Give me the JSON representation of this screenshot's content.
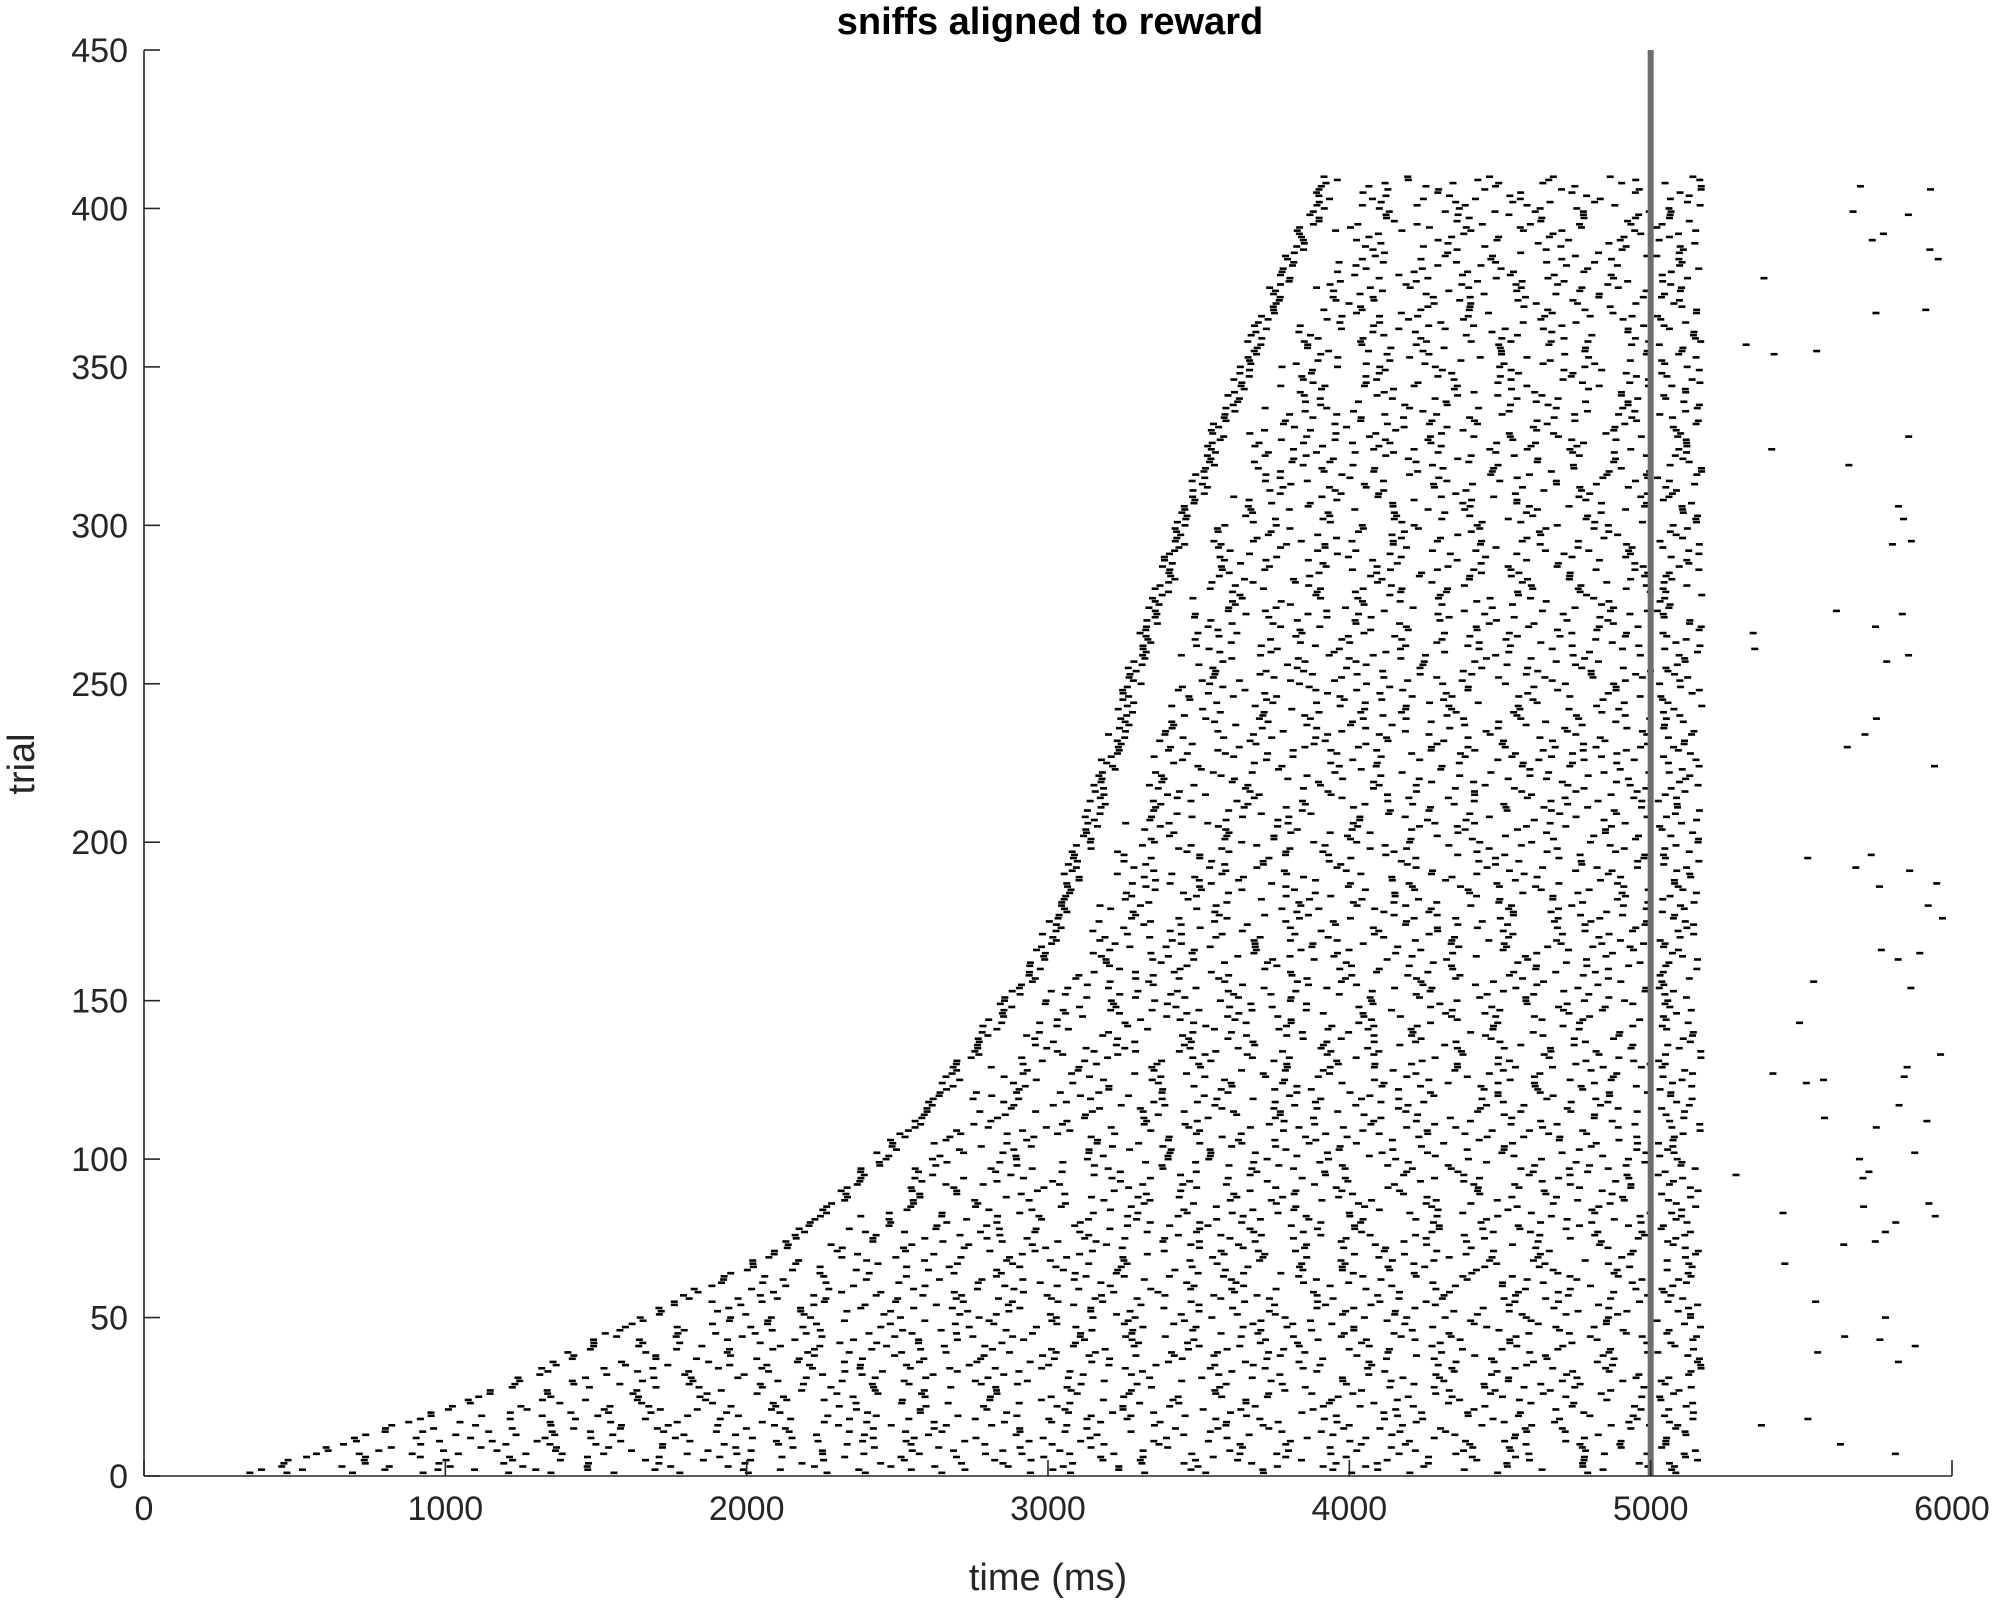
{
  "chart_data": {
    "type": "scatter",
    "subtype": "raster",
    "title": "sniffs aligned to reward",
    "xlabel": "time (ms)",
    "ylabel": "trial",
    "xlim": [
      0,
      6000
    ],
    "ylim": [
      0,
      450
    ],
    "xticks": [
      0,
      1000,
      2000,
      3000,
      4000,
      5000,
      6000
    ],
    "yticks": [
      0,
      50,
      100,
      150,
      200,
      250,
      300,
      350,
      400,
      450
    ],
    "xtick_labels": [
      "0",
      "1000",
      "2000",
      "3000",
      "4000",
      "5000",
      "6000"
    ],
    "ytick_labels": [
      "0",
      "50",
      "100",
      "150",
      "200",
      "250",
      "300",
      "350",
      "400",
      "450"
    ],
    "grid": false,
    "box": false,
    "reward_line": {
      "x": 5000,
      "color": "#6e6e6e"
    },
    "marker_color": "#000000",
    "n_trials": 410,
    "trial_blocks": [
      {
        "trials": [
          1,
          30
        ],
        "first_sniff_ms": [
          380,
          1270
        ]
      },
      {
        "trials": [
          31,
          75
        ],
        "first_sniff_ms": [
          1270,
          2180
        ]
      },
      {
        "trials": [
          76,
          120
        ],
        "first_sniff_ms": [
          2180,
          2650
        ]
      },
      {
        "trials": [
          121,
          165
        ],
        "first_sniff_ms": [
          2650,
          2990
        ]
      },
      {
        "trials": [
          166,
          210
        ],
        "first_sniff_ms": [
          2990,
          3160
        ]
      },
      {
        "trials": [
          211,
          250
        ],
        "first_sniff_ms": [
          3160,
          3280
        ]
      },
      {
        "trials": [
          251,
          285
        ],
        "first_sniff_ms": [
          3280,
          3400
        ]
      },
      {
        "trials": [
          286,
          325
        ],
        "first_sniff_ms": [
          3400,
          3550
        ]
      },
      {
        "trials": [
          326,
          365
        ],
        "first_sniff_ms": [
          3550,
          3720
        ]
      },
      {
        "trials": [
          366,
          410
        ],
        "first_sniff_ms": [
          3720,
          3940
        ]
      }
    ],
    "sniff_interval_ms": [
      120,
      300
    ],
    "post_reward_sniff_interval_ms": [
      250,
      1400
    ],
    "trial_end_ms": 6000
  }
}
